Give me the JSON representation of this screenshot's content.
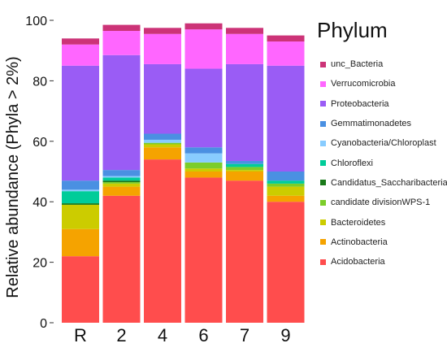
{
  "chart_data": {
    "type": "bar",
    "stacked": true,
    "ylabel": "Relative abundance (Phyla > 2%)",
    "ylim": [
      0,
      100
    ],
    "yticks": [
      0,
      20,
      40,
      60,
      80,
      100
    ],
    "categories": [
      "R",
      "2",
      "4",
      "6",
      "7",
      "9"
    ],
    "legend_title": "Phylum",
    "legend_position": "right",
    "series": [
      {
        "name": "Acidobacteria",
        "color": "#ff4d4d",
        "values": [
          22,
          42,
          54,
          48,
          47,
          40
        ]
      },
      {
        "name": "Actinobacteria",
        "color": "#f5a300",
        "values": [
          9,
          3,
          4,
          2,
          3,
          2
        ]
      },
      {
        "name": "Bacteroidetes",
        "color": "#cccc00",
        "values": [
          8,
          1,
          1,
          1,
          0.5,
          3
        ]
      },
      {
        "name": "candidate divisionWPS-1",
        "color": "#7ccd2a",
        "values": [
          0,
          0.5,
          0.5,
          2,
          1,
          1
        ]
      },
      {
        "name": "Candidatus_Saccharibacteria",
        "color": "#1a7a1a",
        "values": [
          0.5,
          0.5,
          0,
          0,
          0,
          0
        ]
      },
      {
        "name": "Chloroflexi",
        "color": "#00cc99",
        "values": [
          4,
          1,
          0,
          0,
          1,
          1
        ]
      },
      {
        "name": "Cyanobacteria/Chloroplast",
        "color": "#88ccff",
        "values": [
          0.5,
          0.5,
          1,
          3,
          0,
          0
        ]
      },
      {
        "name": "Gemmatimonadetes",
        "color": "#4a90e2",
        "values": [
          3,
          2,
          2,
          2,
          1,
          3
        ]
      },
      {
        "name": "Proteobacteria",
        "color": "#9a5cf5",
        "values": [
          38,
          38,
          23,
          26,
          32,
          35
        ]
      },
      {
        "name": "Verrucomicrobia",
        "color": "#ff66ff",
        "values": [
          7,
          8,
          10,
          13,
          10,
          8
        ]
      },
      {
        "name": "unc_Bacteria",
        "color": "#cc3377",
        "values": [
          2,
          2,
          2,
          2,
          2,
          2
        ]
      }
    ]
  }
}
